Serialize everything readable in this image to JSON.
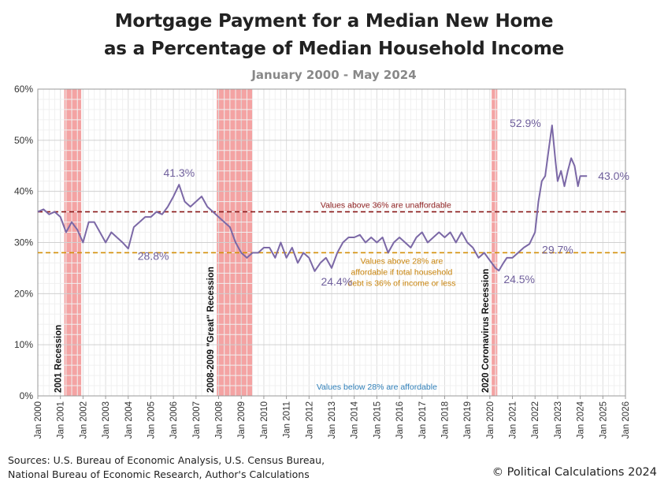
{
  "chart_data": {
    "type": "line",
    "title": "Mortgage Payment for a Median New Home",
    "title_line2": "as a Percentage of Median Household Income",
    "subtitle": "January 2000 - May 2024",
    "xlabel": "",
    "ylabel": "",
    "xlim": [
      2000,
      2026
    ],
    "ylim": [
      0,
      60
    ],
    "x_tick_labels": [
      "Jan 2000",
      "Jan 2001",
      "Jan 2002",
      "Jan 2003",
      "Jan 2004",
      "Jan 2005",
      "Jan 2006",
      "Jan 2007",
      "Jan 2008",
      "Jan 2009",
      "Jan 2010",
      "Jan 2011",
      "Jan 2012",
      "Jan 2013",
      "Jan 2014",
      "Jan 2015",
      "Jan 2016",
      "Jan 2017",
      "Jan 2018",
      "Jan 2019",
      "Jan 2020",
      "Jan 2021",
      "Jan 2022",
      "Jan 2023",
      "Jan 2024",
      "Jan 2025",
      "Jan 2026"
    ],
    "y_tick_labels": [
      "0%",
      "10%",
      "20%",
      "30%",
      "40%",
      "50%",
      "60%"
    ],
    "grid": true,
    "line_color": "#7b68a6",
    "series": [
      {
        "x": [
          2000.0,
          2000.25,
          2000.5,
          2000.75,
          2001.0,
          2001.25,
          2001.5,
          2001.75,
          2002.0,
          2002.25,
          2002.5,
          2002.75,
          2003.0,
          2003.25,
          2003.5,
          2003.75,
          2004.0,
          2004.25,
          2004.5,
          2004.75,
          2005.0,
          2005.25,
          2005.5,
          2005.75,
          2006.0,
          2006.25,
          2006.5,
          2006.75,
          2007.0,
          2007.25,
          2007.5,
          2007.75,
          2008.0,
          2008.25,
          2008.5,
          2008.75,
          2009.0,
          2009.25,
          2009.5,
          2009.75,
          2010.0,
          2010.25,
          2010.5,
          2010.75,
          2011.0,
          2011.25,
          2011.5,
          2011.75,
          2012.0,
          2012.25,
          2012.5,
          2012.75,
          2013.0,
          2013.25,
          2013.5,
          2013.75,
          2014.0,
          2014.25,
          2014.5,
          2014.75,
          2015.0,
          2015.25,
          2015.5,
          2015.75,
          2016.0,
          2016.25,
          2016.5,
          2016.75,
          2017.0,
          2017.25,
          2017.5,
          2017.75,
          2018.0,
          2018.25,
          2018.5,
          2018.75,
          2019.0,
          2019.25,
          2019.5,
          2019.75,
          2020.0,
          2020.25,
          2020.4,
          2020.6,
          2020.75,
          2021.0,
          2021.25,
          2021.5,
          2021.75,
          2022.0,
          2022.15,
          2022.3,
          2022.45,
          2022.6,
          2022.75,
          2022.9,
          2023.0,
          2023.15,
          2023.3,
          2023.45,
          2023.6,
          2023.75,
          2023.9,
          2024.0,
          2024.15,
          2024.3
        ],
        "y": [
          36.0,
          36.5,
          35.5,
          36.0,
          35.0,
          32.0,
          34.0,
          32.5,
          30.0,
          34.0,
          34.0,
          32.0,
          30.0,
          32.0,
          31.0,
          30.0,
          28.8,
          33.0,
          34.0,
          35.0,
          35.0,
          36.0,
          35.5,
          37.0,
          39.0,
          41.3,
          38.0,
          37.0,
          38.0,
          39.0,
          37.0,
          36.0,
          35.0,
          34.0,
          33.0,
          30.0,
          28.0,
          27.0,
          28.0,
          28.0,
          29.0,
          29.0,
          27.0,
          30.0,
          27.0,
          29.0,
          26.0,
          28.0,
          27.0,
          24.4,
          26.0,
          27.0,
          25.0,
          28.0,
          30.0,
          31.0,
          31.0,
          31.5,
          30.0,
          31.0,
          30.0,
          31.0,
          28.0,
          30.0,
          31.0,
          30.0,
          29.0,
          31.0,
          32.0,
          30.0,
          31.0,
          32.0,
          31.0,
          32.0,
          30.0,
          32.0,
          30.0,
          29.0,
          27.0,
          28.0,
          26.5,
          25.0,
          24.5,
          26.0,
          27.0,
          27.0,
          28.0,
          29.0,
          29.7,
          32.0,
          38.0,
          42.0,
          43.0,
          48.0,
          52.9,
          46.0,
          42.0,
          44.0,
          41.0,
          44.0,
          46.5,
          45.0,
          41.0,
          43.0,
          43.0,
          43.0
        ]
      }
    ],
    "recessions": [
      {
        "label": "2001 Recession",
        "start": 2001.17,
        "end": 2001.92
      },
      {
        "label": "2008-2009 \"Great\" Recession",
        "start": 2007.92,
        "end": 2009.5
      },
      {
        "label": "2020 Coronavirus Recession",
        "start": 2020.08,
        "end": 2020.33
      }
    ],
    "thresholds": [
      {
        "value": 36,
        "color": "#8b1a1a",
        "label": "Values above 36% are unaffordable"
      },
      {
        "value": 28,
        "color": "#d4900a",
        "label": "Values above 28% are",
        "label_line2": "affordable if total household",
        "label_line3": "debt is 36% of income or less"
      }
    ],
    "bottom_note": "Values below 28% are affordable",
    "annotations": [
      {
        "text": "41.3%",
        "x": 2006.25,
        "y": 41.3
      },
      {
        "text": "28.8%",
        "x": 2004.0,
        "y": 28.8
      },
      {
        "text": "24.4%",
        "x": 2012.25,
        "y": 24.4
      },
      {
        "text": "24.5%",
        "x": 2020.4,
        "y": 24.5
      },
      {
        "text": "52.9%",
        "x": 2022.75,
        "y": 52.9
      },
      {
        "text": "29.7%",
        "x": 2021.75,
        "y": 29.7
      },
      {
        "text": "43.0%",
        "x": 2024.3,
        "y": 43.0
      }
    ]
  },
  "sources_line1": "Sources: U.S. Bureau of Economic Analysis, U.S. Census Bureau,",
  "sources_line2": "National Bureau of Economic Research, Author's Calculations",
  "credit": "© Political Calculations 2024"
}
